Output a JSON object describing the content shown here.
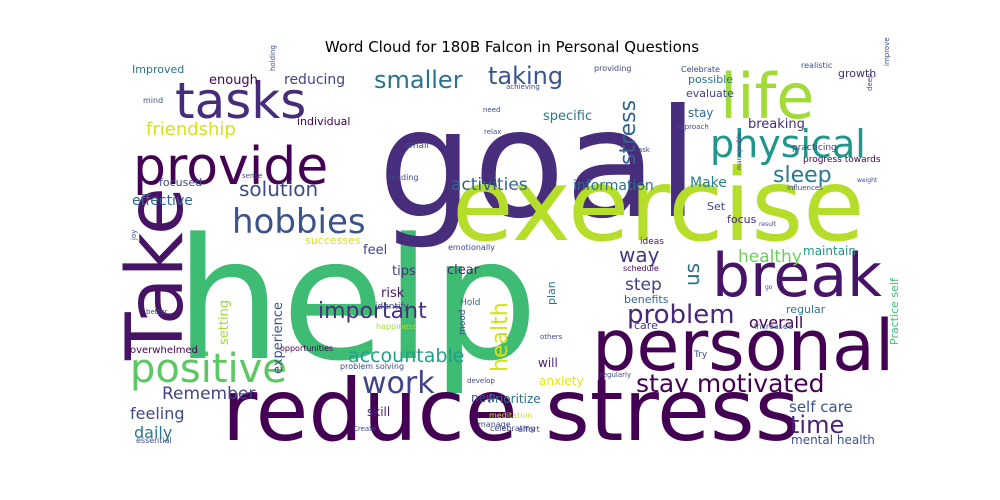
{
  "chart_data": {
    "type": "wordcloud",
    "title": "Word Cloud for 180B Falcon in Personal Questions",
    "background": "#ffffff",
    "colormap": "viridis",
    "words": [
      {
        "text": "help",
        "size": 168,
        "color": "#3fbc73"
      },
      {
        "text": "goal",
        "size": 150,
        "color": "#472d7b"
      },
      {
        "text": "exercise",
        "size": 100,
        "color": "#b5de2b"
      },
      {
        "text": "reduce stress",
        "size": 86,
        "color": "#440154"
      },
      {
        "text": "Take",
        "size": 78,
        "color": "#471365"
      },
      {
        "text": "personal",
        "size": 70,
        "color": "#440154"
      },
      {
        "text": "life",
        "size": 62,
        "color": "#a2da37"
      },
      {
        "text": "break",
        "size": 60,
        "color": "#481467"
      },
      {
        "text": "provide",
        "size": 52,
        "color": "#440154"
      },
      {
        "text": "tasks",
        "size": 50,
        "color": "#472c7a"
      },
      {
        "text": "positive",
        "size": 40,
        "color": "#5cc863"
      },
      {
        "text": "physical",
        "size": 38,
        "color": "#1f968b"
      },
      {
        "text": "hobbies",
        "size": 34,
        "color": "#3b528b"
      },
      {
        "text": "work",
        "size": 30,
        "color": "#414487"
      },
      {
        "text": "problem",
        "size": 26,
        "color": "#482878"
      },
      {
        "text": "stay motivated",
        "size": 25,
        "color": "#440154"
      },
      {
        "text": "time",
        "size": 24,
        "color": "#482173"
      },
      {
        "text": "smaller",
        "size": 24,
        "color": "#2c728e"
      },
      {
        "text": "taking",
        "size": 24,
        "color": "#39568c"
      },
      {
        "text": "sleep",
        "size": 22,
        "color": "#2a788e"
      },
      {
        "text": "health",
        "size": 22,
        "color": "#d2e21b"
      },
      {
        "text": "stress",
        "size": 22,
        "color": "#33638d"
      },
      {
        "text": "important",
        "size": 22,
        "color": "#472f7d"
      },
      {
        "text": "solution",
        "size": 20,
        "color": "#3e4a89"
      },
      {
        "text": "way",
        "size": 20,
        "color": "#453781"
      },
      {
        "text": "accountable",
        "size": 19,
        "color": "#1fa187"
      },
      {
        "text": "friendship",
        "size": 18,
        "color": "#d8e219"
      },
      {
        "text": "us",
        "size": 20,
        "color": "#2d708e"
      },
      {
        "text": "Remember",
        "size": 17,
        "color": "#414487"
      },
      {
        "text": "activities",
        "size": 17,
        "color": "#33638d"
      },
      {
        "text": "step",
        "size": 17,
        "color": "#424086"
      },
      {
        "text": "healthy",
        "size": 17,
        "color": "#6ece58"
      },
      {
        "text": "feeling",
        "size": 16,
        "color": "#3e4a89"
      },
      {
        "text": "daily",
        "size": 16,
        "color": "#2a788e"
      },
      {
        "text": "overall",
        "size": 16,
        "color": "#440154"
      },
      {
        "text": "self care",
        "size": 15,
        "color": "#3b528b"
      },
      {
        "text": "effective",
        "size": 14,
        "color": "#31688e"
      },
      {
        "text": "Make",
        "size": 14,
        "color": "#287d8e"
      },
      {
        "text": "information",
        "size": 14,
        "color": "#2c728e"
      },
      {
        "text": "reducing",
        "size": 14,
        "color": "#404387"
      },
      {
        "text": "enough",
        "size": 13,
        "color": "#440154"
      },
      {
        "text": "specific",
        "size": 13,
        "color": "#2a788e"
      },
      {
        "text": "breaking",
        "size": 13,
        "color": "#472d7b"
      },
      {
        "text": "experience",
        "size": 13,
        "color": "#3b528b"
      },
      {
        "text": "setting",
        "size": 13,
        "color": "#a2da37"
      },
      {
        "text": "clear",
        "size": 13,
        "color": "#482878"
      },
      {
        "text": "tips",
        "size": 13,
        "color": "#46337e"
      },
      {
        "text": "risk",
        "size": 13,
        "color": "#481467"
      },
      {
        "text": "feel",
        "size": 13,
        "color": "#414487"
      },
      {
        "text": "mental health",
        "size": 12,
        "color": "#3b528b"
      },
      {
        "text": "maintain",
        "size": 12,
        "color": "#1f968b"
      },
      {
        "text": "skill",
        "size": 12,
        "color": "#482173"
      },
      {
        "text": "Prioritize",
        "size": 12,
        "color": "#2d708e"
      },
      {
        "text": "new",
        "size": 12,
        "color": "#3b528b"
      },
      {
        "text": "anxiety",
        "size": 12,
        "color": "#e5e419"
      },
      {
        "text": "plan",
        "size": 11,
        "color": "#2c728e"
      },
      {
        "text": "will",
        "size": 12,
        "color": "#482173"
      },
      {
        "text": "successes",
        "size": 11,
        "color": "#d8e219"
      },
      {
        "text": "benefits",
        "size": 11,
        "color": "#31688e"
      },
      {
        "text": "regular",
        "size": 11,
        "color": "#2a788e"
      },
      {
        "text": "care",
        "size": 11,
        "color": "#453781"
      },
      {
        "text": "focused",
        "size": 11,
        "color": "#3e4a89"
      },
      {
        "text": "Improved",
        "size": 11,
        "color": "#2c728e"
      },
      {
        "text": "individual",
        "size": 11,
        "color": "#440154"
      },
      {
        "text": "possible",
        "size": 11,
        "color": "#2c728e"
      },
      {
        "text": "evaluate",
        "size": 11,
        "color": "#404387"
      },
      {
        "text": "growth",
        "size": 11,
        "color": "#472d7b"
      },
      {
        "text": "stay",
        "size": 12,
        "color": "#31688e"
      },
      {
        "text": "Set",
        "size": 11,
        "color": "#404387"
      },
      {
        "text": "focus",
        "size": 11,
        "color": "#472d7b"
      },
      {
        "text": "mood",
        "size": 9,
        "color": "#3e4a89"
      },
      {
        "text": "Hold",
        "size": 9,
        "color": "#2d708e"
      },
      {
        "text": "ideas",
        "size": 9,
        "color": "#481467"
      },
      {
        "text": "schedule",
        "size": 8,
        "color": "#440154"
      },
      {
        "text": "Practice self",
        "size": 11,
        "color": "#3fbc73"
      },
      {
        "text": "practicing",
        "size": 9,
        "color": "#414487"
      },
      {
        "text": "progress towards",
        "size": 9,
        "color": "#440154"
      },
      {
        "text": "overwhelmed",
        "size": 10,
        "color": "#440154"
      },
      {
        "text": "problem solving",
        "size": 8,
        "color": "#3e4a89"
      },
      {
        "text": "opportunities",
        "size": 8,
        "color": "#440154"
      },
      {
        "text": "identify",
        "size": 9,
        "color": "#3e4a89"
      },
      {
        "text": "happiness",
        "size": 8,
        "color": "#a2da37"
      },
      {
        "text": "small",
        "size": 9,
        "color": "#3e4a89"
      },
      {
        "text": "emotionally",
        "size": 8,
        "color": "#3e4a89"
      },
      {
        "text": "leading",
        "size": 8,
        "color": "#3e4a89"
      },
      {
        "text": "Increased",
        "size": 8,
        "color": "#3b528b"
      },
      {
        "text": "mind",
        "size": 8,
        "color": "#3b528b"
      },
      {
        "text": "Try",
        "size": 9,
        "color": "#3e4a89"
      },
      {
        "text": "celebrating",
        "size": 8,
        "color": "#3e4a89"
      },
      {
        "text": "meditation",
        "size": 8,
        "color": "#d2e21b"
      },
      {
        "text": "manage",
        "size": 8,
        "color": "#3e4a89"
      },
      {
        "text": "effort",
        "size": 8,
        "color": "#3e4a89"
      },
      {
        "text": "essential",
        "size": 8,
        "color": "#3e4a89"
      },
      {
        "text": "realistic",
        "size": 8,
        "color": "#3b528b"
      },
      {
        "text": "improve",
        "size": 7,
        "color": "#3e4a89"
      },
      {
        "text": "deep",
        "size": 7,
        "color": "#3e4a89"
      },
      {
        "text": "Celebrate",
        "size": 8,
        "color": "#3e4a89"
      },
      {
        "text": "providing",
        "size": 8,
        "color": "#3e4a89"
      },
      {
        "text": "achieving",
        "size": 7,
        "color": "#3e4a89"
      },
      {
        "text": "need",
        "size": 7,
        "color": "#3e4a89"
      },
      {
        "text": "relax",
        "size": 7,
        "color": "#3e4a89"
      },
      {
        "text": "approach",
        "size": 7,
        "color": "#3e4a89"
      },
      {
        "text": "sense",
        "size": 7,
        "color": "#3e4a89"
      },
      {
        "text": "holding",
        "size": 7,
        "color": "#3e4a89"
      },
      {
        "text": "ask",
        "size": 7,
        "color": "#3e4a89"
      },
      {
        "text": "develop",
        "size": 7,
        "color": "#3e4a89"
      },
      {
        "text": "better",
        "size": 7,
        "color": "#3e4a89"
      },
      {
        "text": "joy",
        "size": 7,
        "color": "#3e4a89"
      },
      {
        "text": "others",
        "size": 7,
        "color": "#3e4a89"
      },
      {
        "text": "regularly",
        "size": 7,
        "color": "#3e4a89"
      },
      {
        "text": "Create",
        "size": 7,
        "color": "#3e4a89"
      },
      {
        "text": "manageable",
        "size": 6,
        "color": "#3e4a89"
      },
      {
        "text": "influences",
        "size": 7,
        "color": "#3e4a89"
      },
      {
        "text": "weight",
        "size": 6,
        "color": "#3e4a89"
      },
      {
        "text": "result",
        "size": 6,
        "color": "#3e4a89"
      },
      {
        "text": "go",
        "size": 6,
        "color": "#3e4a89"
      }
    ]
  }
}
